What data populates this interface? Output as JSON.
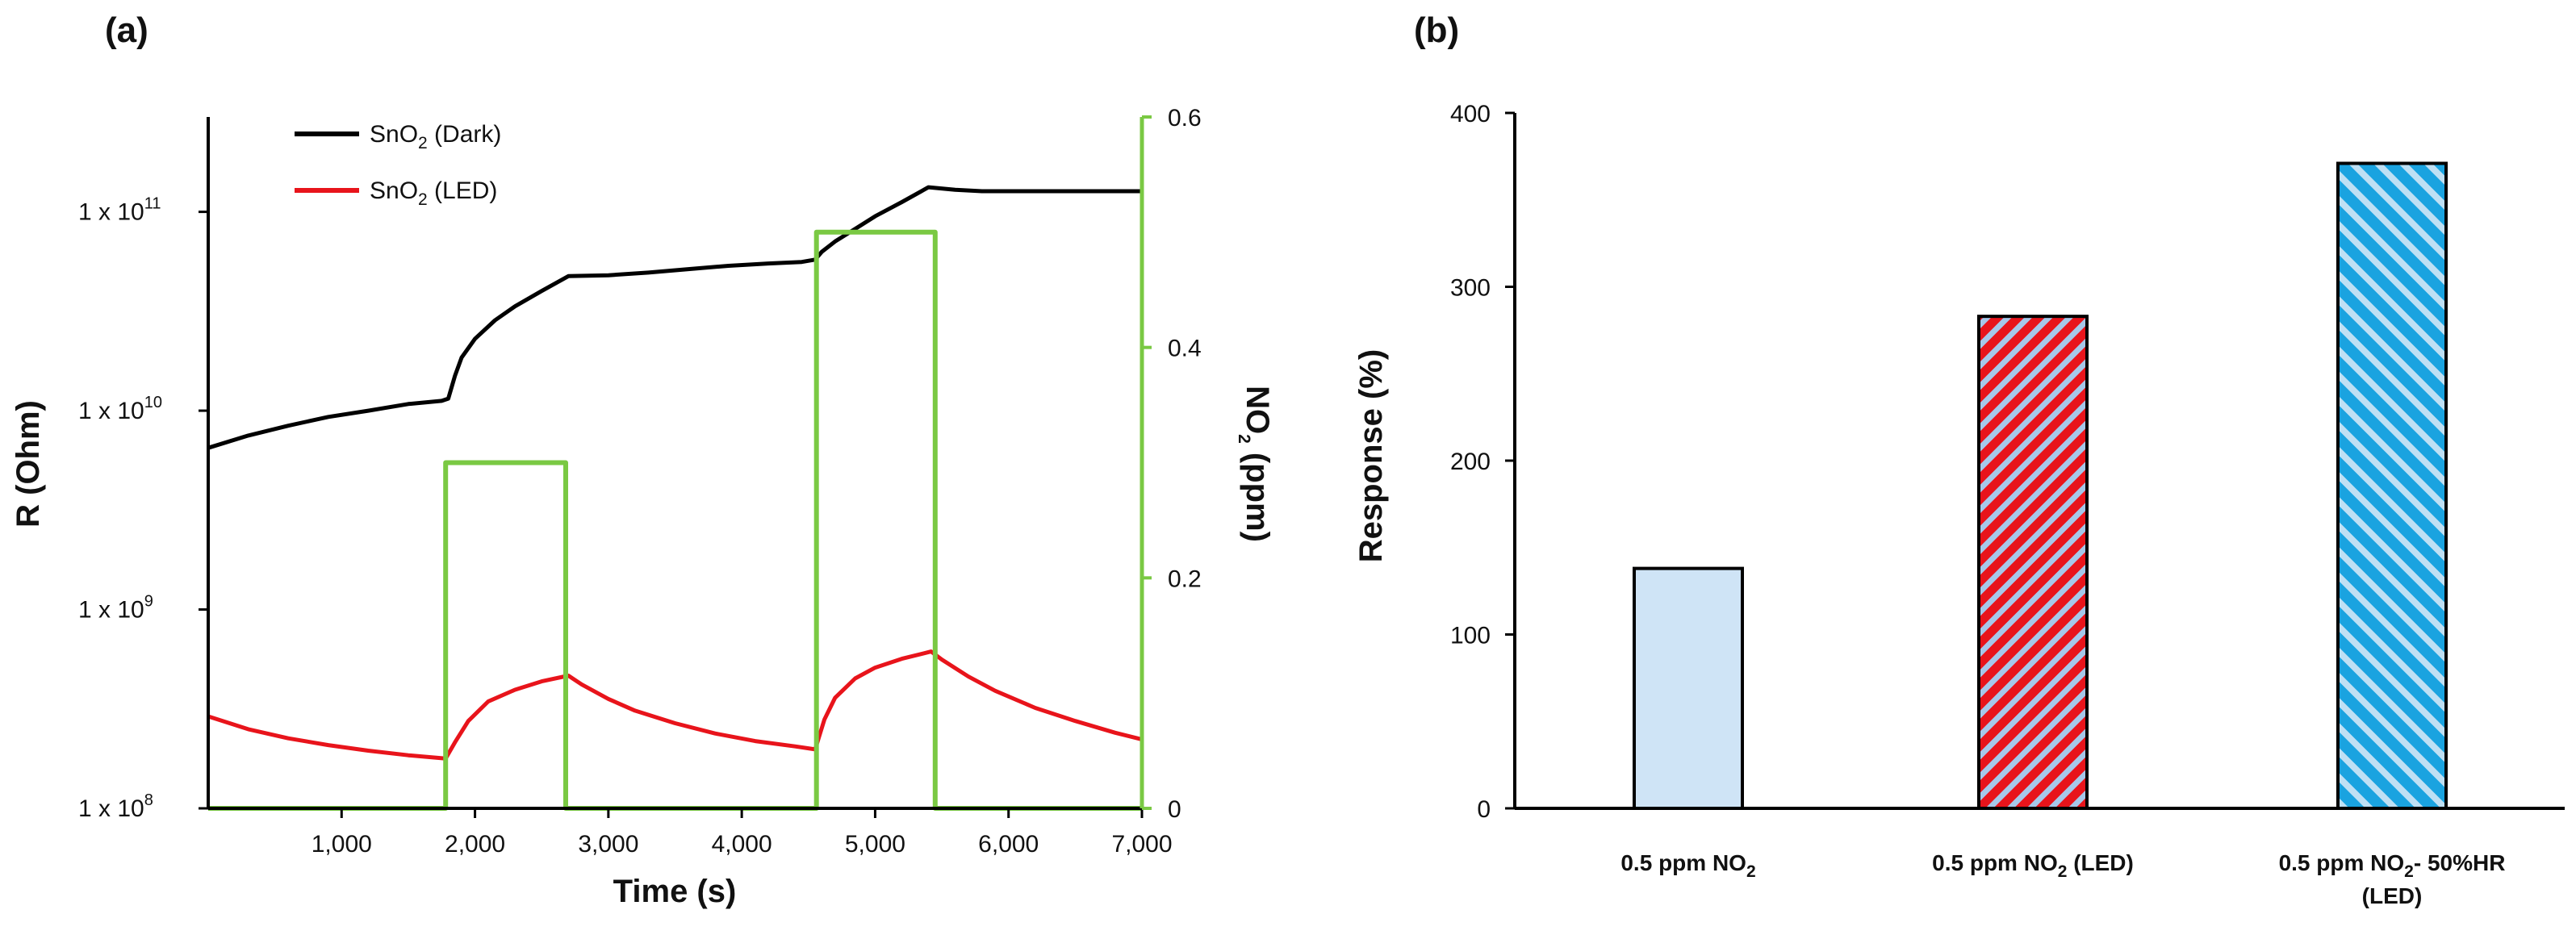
{
  "chart_data": [
    {
      "panel": "(a)",
      "type": "line",
      "xlabel": "Time (s)",
      "ylabel_left": "R (Ohm)",
      "ylabel_right": {
        "base": "NO",
        "sub": "2",
        "rest": " (ppm)"
      },
      "xlim": [
        0,
        7000
      ],
      "x_ticks": [
        "1,000",
        "2,000",
        "3,000",
        "4,000",
        "5,000",
        "6,000",
        "7,000"
      ],
      "x_tick_values": [
        1000,
        2000,
        3000,
        4000,
        5000,
        6000,
        7000
      ],
      "y_left_scale": "log",
      "y_left_lim": [
        100000000,
        300000000000
      ],
      "y_left_ticks": [
        {
          "value": 100000000,
          "base": "1 x 10",
          "exp": "8"
        },
        {
          "value": 1000000000,
          "base": "1 x 10",
          "exp": "9"
        },
        {
          "value": 10000000000,
          "base": "1 x 10",
          "exp": "10"
        },
        {
          "value": 100000000000,
          "base": "1 x 10",
          "exp": "11"
        }
      ],
      "y_right_lim": [
        0,
        0.6
      ],
      "y_right_ticks": [
        "0",
        "0.2",
        "0.4",
        "0.6"
      ],
      "y_right_tick_values": [
        0,
        0.2,
        0.4,
        0.6
      ],
      "legend_position": "top-left",
      "series": [
        {
          "name": "SnO2 (Dark)",
          "label": {
            "base": "SnO",
            "sub": "2",
            "rest": " (Dark)"
          },
          "color": "#000000",
          "axis": "left",
          "points": [
            [
              0,
              6500000000
            ],
            [
              300,
              7500000000
            ],
            [
              600,
              8400000000
            ],
            [
              900,
              9300000000
            ],
            [
              1200,
              10000000000
            ],
            [
              1500,
              10800000000
            ],
            [
              1750,
              11200000000
            ],
            [
              1800,
              11500000000
            ],
            [
              1850,
              15000000000
            ],
            [
              1900,
              18500000000
            ],
            [
              2000,
              23000000000
            ],
            [
              2150,
              28500000000
            ],
            [
              2300,
              33500000000
            ],
            [
              2500,
              40000000000
            ],
            [
              2700,
              47500000000
            ],
            [
              3000,
              48000000000
            ],
            [
              3300,
              49500000000
            ],
            [
              3600,
              51500000000
            ],
            [
              3900,
              53500000000
            ],
            [
              4200,
              55000000000
            ],
            [
              4450,
              56000000000
            ],
            [
              4550,
              57500000000
            ],
            [
              4600,
              63000000000
            ],
            [
              4700,
              71000000000
            ],
            [
              4850,
              82000000000
            ],
            [
              5000,
              95000000000
            ],
            [
              5200,
              112000000000
            ],
            [
              5400,
              133000000000
            ],
            [
              5600,
              129000000000
            ],
            [
              5800,
              127000000000
            ],
            [
              6200,
              127000000000
            ],
            [
              6600,
              127000000000
            ],
            [
              7000,
              127000000000
            ]
          ]
        },
        {
          "name": "SnO2 (LED)",
          "label": {
            "base": "SnO",
            "sub": "2",
            "rest": " (LED)"
          },
          "color": "#e8141b",
          "axis": "left",
          "points": [
            [
              0,
              290000000
            ],
            [
              300,
              250000000
            ],
            [
              600,
              225000000
            ],
            [
              900,
              208000000
            ],
            [
              1200,
              195000000
            ],
            [
              1500,
              185000000
            ],
            [
              1780,
              178000000
            ],
            [
              1850,
              215000000
            ],
            [
              1950,
              275000000
            ],
            [
              2100,
              345000000
            ],
            [
              2300,
              395000000
            ],
            [
              2500,
              435000000
            ],
            [
              2700,
              465000000
            ],
            [
              2800,
              420000000
            ],
            [
              3000,
              355000000
            ],
            [
              3200,
              310000000
            ],
            [
              3500,
              268000000
            ],
            [
              3800,
              238000000
            ],
            [
              4100,
              218000000
            ],
            [
              4400,
              205000000
            ],
            [
              4550,
              198000000
            ],
            [
              4620,
              280000000
            ],
            [
              4700,
              360000000
            ],
            [
              4850,
              450000000
            ],
            [
              5000,
              510000000
            ],
            [
              5200,
              565000000
            ],
            [
              5420,
              615000000
            ],
            [
              5500,
              560000000
            ],
            [
              5700,
              460000000
            ],
            [
              5900,
              390000000
            ],
            [
              6200,
              320000000
            ],
            [
              6500,
              275000000
            ],
            [
              6800,
              240000000
            ],
            [
              7000,
              222000000
            ]
          ]
        },
        {
          "name": "NO2",
          "color": "#7ac943",
          "axis": "right",
          "points": [
            [
              0,
              0
            ],
            [
              1780,
              0
            ],
            [
              1780,
              0.3
            ],
            [
              2680,
              0.3
            ],
            [
              2680,
              0
            ],
            [
              4560,
              0
            ],
            [
              4560,
              0.5
            ],
            [
              5450,
              0.5
            ],
            [
              5450,
              0
            ],
            [
              7000,
              0
            ]
          ]
        }
      ]
    },
    {
      "panel": "(b)",
      "type": "bar",
      "ylabel": "Response (%)",
      "ylim": [
        0,
        400
      ],
      "y_ticks": [
        "0",
        "100",
        "200",
        "300",
        "400"
      ],
      "y_tick_values": [
        0,
        100,
        200,
        300,
        400
      ],
      "categories": [
        {
          "line1": {
            "base": "0.5 ppm NO",
            "sub": "2",
            "rest": ""
          },
          "line2": ""
        },
        {
          "line1": {
            "base": "0.5 ppm NO",
            "sub": "2",
            "rest": " (LED)"
          },
          "line2": ""
        },
        {
          "line1": {
            "base": "0.5 ppm NO",
            "sub": "2",
            "rest": "- 50%HR"
          },
          "line2": "(LED)"
        }
      ],
      "values": [
        138,
        283,
        371
      ],
      "bar_styles": [
        {
          "fill": "#cfe4f6",
          "stripe": "none"
        },
        {
          "fill": "#e8141b",
          "stripe": "#a6c8ea"
        },
        {
          "fill": "#1aa3e0",
          "stripe": "#bfe0f4"
        }
      ]
    }
  ]
}
